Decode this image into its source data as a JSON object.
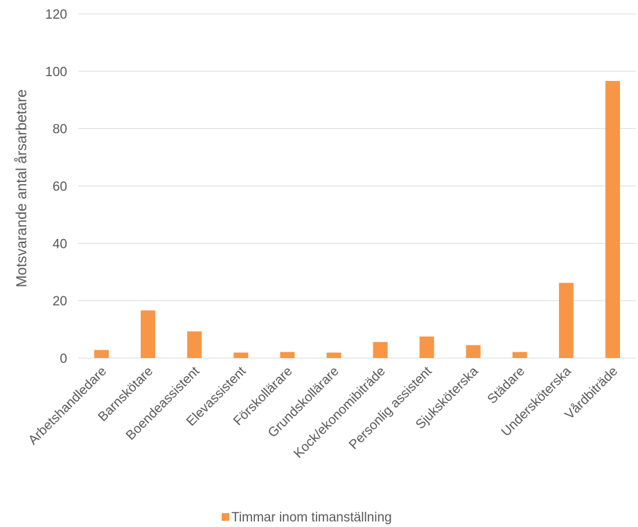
{
  "chart_data": {
    "type": "bar",
    "title": "",
    "xlabel": "",
    "ylabel": "Motsvarande antal årsarbetare",
    "categories": [
      "Arbetshandledare",
      "Barnskötare",
      "Boendeassistent",
      "Elevassistent",
      "Förskollärare",
      "Grundskollärare",
      "Kock/ekonomibiträde",
      "Personlig assistent",
      "Sjuksköterska",
      "Städare",
      "Undersköterska",
      "Vårdbiträde"
    ],
    "series": [
      {
        "name": "Timmar inom timanställning",
        "values": [
          2.8,
          16.6,
          9.3,
          1.9,
          2.1,
          1.9,
          5.6,
          7.5,
          4.5,
          2.1,
          26.2,
          96.6
        ]
      }
    ],
    "ylim": [
      0,
      120
    ],
    "yticks": [
      0,
      20,
      40,
      60,
      80,
      100,
      120
    ],
    "grid": true,
    "legend_position": "bottom",
    "colors": {
      "bar": "#F79646",
      "grid": "#D9D9D9",
      "text": "#595959"
    }
  }
}
